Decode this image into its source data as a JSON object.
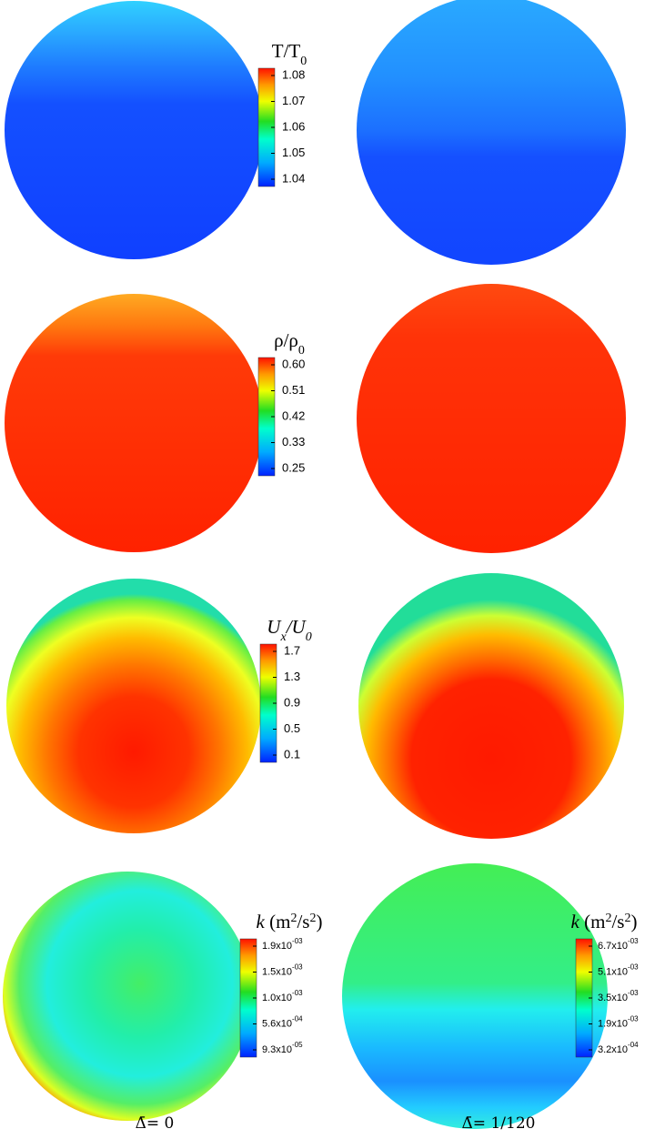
{
  "colorbars": [
    {
      "title": [
        {
          "text": "T/T"
        },
        {
          "text": "0",
          "style": "sub"
        }
      ],
      "ticks": [
        "1.08",
        "1.07",
        "1.06",
        "1.05",
        "1.04"
      ]
    },
    {
      "title": [
        {
          "text": "ρ/ρ"
        },
        {
          "text": "0",
          "style": "sub"
        }
      ],
      "ticks": [
        "0.60",
        "0.51",
        "0.42",
        "0.33",
        "0.25"
      ]
    },
    {
      "title": [
        {
          "text": "U",
          "style": "italic"
        },
        {
          "text": "x",
          "style": "sub-italic"
        },
        {
          "text": "/U",
          "style": "italic"
        },
        {
          "text": "0",
          "style": "sub-italic"
        }
      ],
      "ticks": [
        "1.7",
        "1.3",
        "0.9",
        "0.5",
        "0.1"
      ]
    },
    {
      "title": [
        {
          "text": "k",
          "style": "italic"
        },
        {
          "text": " (m"
        },
        {
          "text": "2",
          "style": "sup"
        },
        {
          "text": "/s"
        },
        {
          "text": "2",
          "style": "sup"
        },
        {
          "text": ")"
        }
      ],
      "ticks": [
        {
          "mantissa": "1.9x10",
          "exponent": "-03"
        },
        {
          "mantissa": "1.5x10",
          "exponent": "-03"
        },
        {
          "mantissa": "1.0x10",
          "exponent": "-03"
        },
        {
          "mantissa": "5.6x10",
          "exponent": "-04"
        },
        {
          "mantissa": "9.3x10",
          "exponent": "-05"
        }
      ]
    },
    {
      "title": [
        {
          "text": "k",
          "style": "italic"
        },
        {
          "text": " (m"
        },
        {
          "text": "2",
          "style": "sup"
        },
        {
          "text": "/s"
        },
        {
          "text": "2",
          "style": "sup"
        },
        {
          "text": ")"
        }
      ],
      "ticks": [
        {
          "mantissa": "6.7x10",
          "exponent": "-03"
        },
        {
          "mantissa": "5.1x10",
          "exponent": "-03"
        },
        {
          "mantissa": "3.5x10",
          "exponent": "-03"
        },
        {
          "mantissa": "1.9x10",
          "exponent": "-03"
        },
        {
          "mantissa": "3.2x10",
          "exponent": "-04"
        }
      ]
    }
  ],
  "captions": [
    "Δ̄= 0",
    "Δ̄= 1/120"
  ]
}
